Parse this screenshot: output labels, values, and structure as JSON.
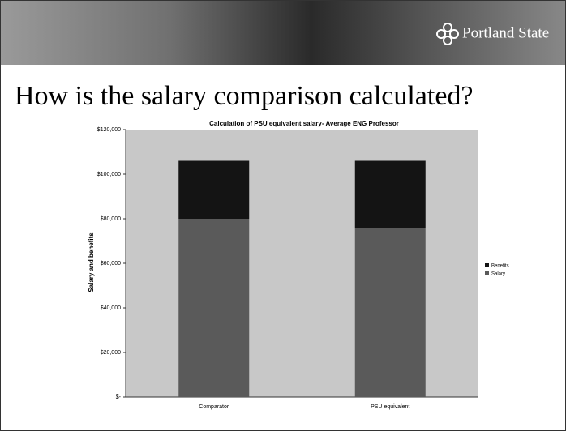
{
  "slide": {
    "logo": "Portland State",
    "title": "How is the salary comparison calculated?"
  },
  "chart_data": {
    "type": "stacked-bar",
    "title": "Calculation of PSU equivalent salary- Average ENG Professor",
    "y_label": "Salary and benefits",
    "categories": [
      "Comparator",
      "PSU equivalent"
    ],
    "series": [
      {
        "name": "Salary",
        "color": "#5a5a5a",
        "values": [
          80000,
          76000
        ]
      },
      {
        "name": "Benefits",
        "color": "#141414",
        "values": [
          26000,
          30000
        ]
      }
    ],
    "ylim": [
      0,
      120000
    ],
    "yticks": [
      {
        "value": 0,
        "label": "$-"
      },
      {
        "value": 20000,
        "label": "$20,000"
      },
      {
        "value": 40000,
        "label": "$40,000"
      },
      {
        "value": 60000,
        "label": "$60,000"
      },
      {
        "value": 80000,
        "label": "$80,000"
      },
      {
        "value": 100000,
        "label": "$100,000"
      },
      {
        "value": 120000,
        "label": "$120,000"
      }
    ],
    "legend": "right"
  }
}
